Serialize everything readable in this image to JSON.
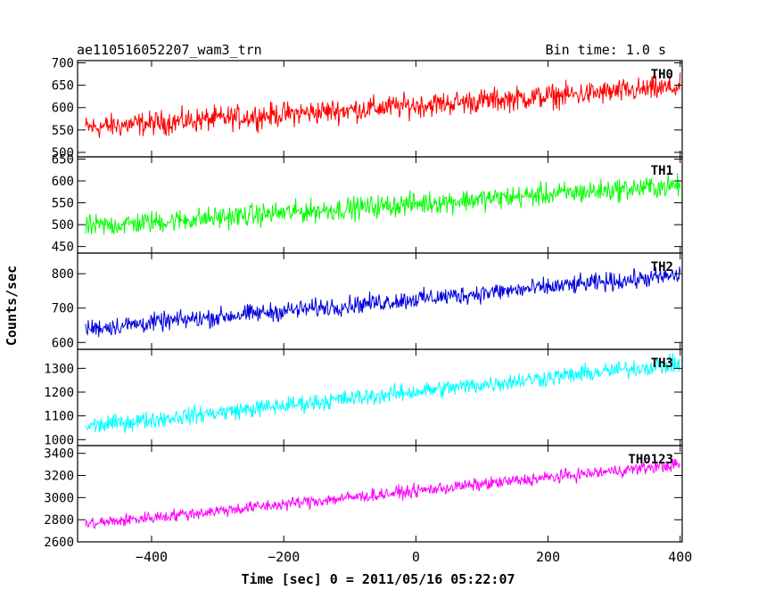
{
  "header": {
    "title": "ae110516052207_wam3_trn",
    "bin_time": "Bin time: 1.0 s"
  },
  "chart_data": {
    "type": "line",
    "xlabel": "Time [sec] 0 = 2011/05/16 05:22:07",
    "ylabel": "Counts/sec",
    "xlim": [
      -512,
      403
    ],
    "xticks": [
      -400,
      -200,
      0,
      200,
      400
    ],
    "x_tick_labels": [
      "−400",
      "−200",
      "0",
      "200",
      "400"
    ],
    "x_range_data": [
      -500,
      400
    ],
    "bin_time": 1.0,
    "panels": [
      {
        "name": "TH0",
        "color": "#ff0000",
        "ylim": [
          490,
          705
        ],
        "yticks": [
          500,
          550,
          600,
          650,
          700
        ],
        "trend_start": 555,
        "trend_end": 645,
        "noise_amplitude": 40
      },
      {
        "name": "TH1",
        "color": "#00ff00",
        "ylim": [
          435,
          655
        ],
        "yticks": [
          450,
          500,
          550,
          600,
          650
        ],
        "trend_start": 495,
        "trend_end": 590,
        "noise_amplitude": 38
      },
      {
        "name": "TH2",
        "color": "#0000dd",
        "ylim": [
          580,
          860
        ],
        "yticks": [
          600,
          700,
          800
        ],
        "trend_start": 640,
        "trend_end": 795,
        "noise_amplitude": 40
      },
      {
        "name": "TH3",
        "color": "#00ffff",
        "ylim": [
          975,
          1380
        ],
        "yticks": [
          1000,
          1100,
          1200,
          1300
        ],
        "trend_start": 1055,
        "trend_end": 1320,
        "noise_amplitude": 55
      },
      {
        "name": "TH0123",
        "color": "#ff00ff",
        "ylim": [
          2600,
          3470
        ],
        "yticks": [
          2600,
          2800,
          3000,
          3200,
          3400
        ],
        "trend_start": 2760,
        "trend_end": 3300,
        "noise_amplitude": 85
      }
    ]
  }
}
